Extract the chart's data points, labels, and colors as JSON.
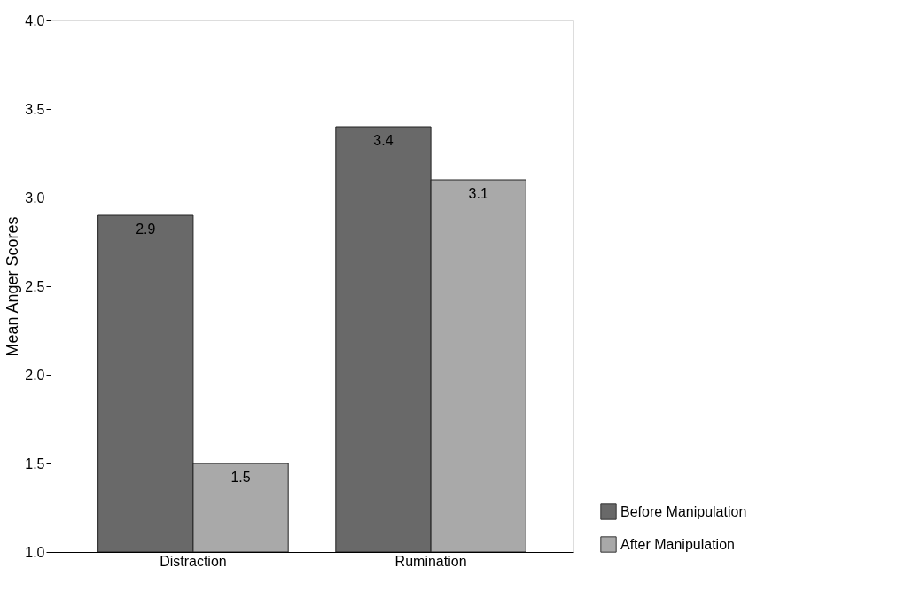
{
  "chart_data": {
    "type": "bar",
    "ylabel": "Mean Anger Scores",
    "categories": [
      "Distraction",
      "Rumination"
    ],
    "series": [
      {
        "name": "Before Manipulation",
        "color": "#696969",
        "values": [
          2.9,
          3.4
        ]
      },
      {
        "name": "After Manipulation",
        "color": "#a9a9a9",
        "values": [
          1.5,
          3.1
        ]
      }
    ],
    "ylim": [
      1.0,
      4.0
    ],
    "yticks": [
      {
        "value": 1.0,
        "label": "1.0"
      },
      {
        "value": 1.5,
        "label": "1.5"
      },
      {
        "value": 2.0,
        "label": "2.0"
      },
      {
        "value": 2.5,
        "label": "2.5"
      },
      {
        "value": 3.0,
        "label": "3.0"
      },
      {
        "value": 3.5,
        "label": "3.5"
      },
      {
        "value": 4.0,
        "label": "4.0"
      }
    ],
    "data_labels": true,
    "grid": false,
    "legend": "bottom right"
  }
}
